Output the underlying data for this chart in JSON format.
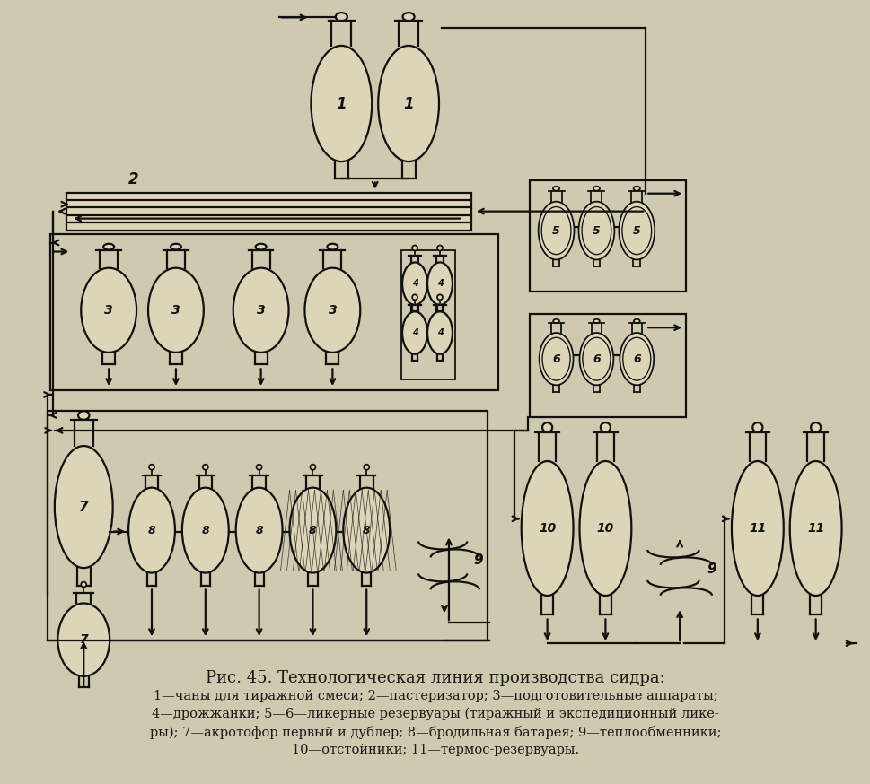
{
  "bg": "#cfc9b0",
  "lc": "#111111",
  "lw": 1.6,
  "title": "Рис. 45. Технологическая линия производства сидра:",
  "cap1": "1—чаны для тиражной смеси; 2—пастеризатор; 3—подготовительные аппараты;",
  "cap2": "4—дрожжанки; 5—6—ликерные резервуары (тиражный и экспедиционный ликe-",
  "cap3": "ры); 7—акротофор первый и дублер; 8—бродильная батарея; 9—теплообменники;",
  "cap4": "10—отстойники; 11—термос-резервуары."
}
